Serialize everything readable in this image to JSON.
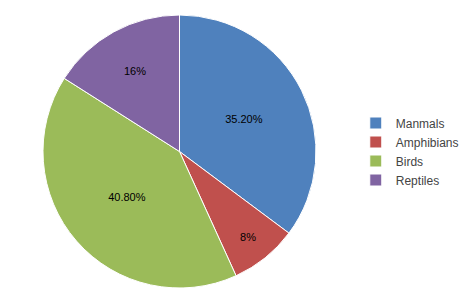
{
  "chart_data": {
    "type": "pie",
    "categories": [
      "Manmals",
      "Amphibians",
      "Birds",
      "Reptiles"
    ],
    "values": [
      35.2,
      8.0,
      40.8,
      16.0
    ],
    "value_labels": [
      "35.20%",
      "8%",
      "40.80%",
      "16%"
    ],
    "colors": [
      "#4F81BD",
      "#C0504D",
      "#9BBB59",
      "#8064A2"
    ],
    "data_labels": true,
    "legend": "right"
  }
}
